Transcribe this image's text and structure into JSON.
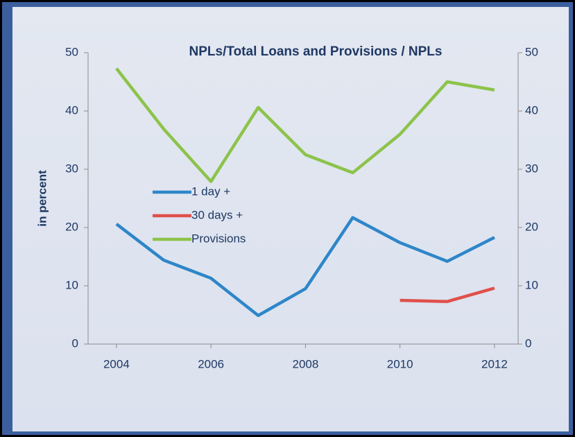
{
  "chart_data": {
    "type": "line",
    "title": "NPLs/Total Loans and Provisions / NPLs",
    "y_label": "in percent",
    "x": [
      2004,
      2005,
      2006,
      2007,
      2008,
      2009,
      2010,
      2011,
      2012
    ],
    "xlim": [
      2003.4,
      2012.5
    ],
    "xticks": [
      2004,
      2006,
      2008,
      2010,
      2012
    ],
    "ylim": [
      0,
      50
    ],
    "yticks": [
      0,
      10,
      20,
      30,
      40,
      50
    ],
    "y2lim": [
      0,
      50
    ],
    "y2ticks": [
      0,
      10,
      20,
      30,
      40,
      50
    ],
    "legend": "left",
    "series": [
      {
        "name": "1 day +",
        "color": "#2e86c8",
        "values": [
          20.6,
          14.4,
          11.3,
          4.9,
          9.5,
          21.7,
          17.4,
          14.2,
          18.3
        ]
      },
      {
        "name": "30 days +",
        "color": "#e0504a",
        "values": [
          null,
          null,
          null,
          null,
          null,
          null,
          7.5,
          7.3,
          9.6
        ]
      },
      {
        "name": "Provisions",
        "color": "#8cc34a",
        "values": [
          47.3,
          36.9,
          27.9,
          40.6,
          32.5,
          29.4,
          36.0,
          45.0,
          43.6
        ]
      }
    ]
  }
}
